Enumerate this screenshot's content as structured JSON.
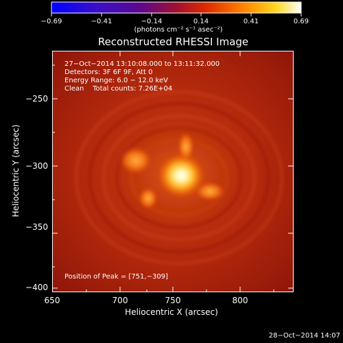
{
  "title": "Reconstructed RHESSI Image",
  "colorbar": {
    "ticks": [
      "−0.69",
      "−0.41",
      "−0.14",
      "0.14",
      "0.41",
      "0.69"
    ],
    "units_label": "(photons cm⁻² s⁻¹ asec⁻²)"
  },
  "info": {
    "line1": "27−Oct−2014 13:10:08.000 to 13:11:32.000",
    "line2": "Detectors: 3F 6F 9F, Att 0",
    "line3": "Energy Range: 6.0 − 12.0 keV",
    "line4": "Clean    Total counts: 7.26E+04"
  },
  "peak_label": "Position of Peak = [751,−309]",
  "axes": {
    "xlabel": "Heliocentric X (arcsec)",
    "ylabel": "Heliocentric Y (arcsec)",
    "xticks": [
      "650",
      "700",
      "750",
      "800"
    ],
    "yticks": [
      "−250",
      "−300",
      "−350",
      "−400"
    ]
  },
  "footer_date": "28−Oct−2014 14:07"
}
